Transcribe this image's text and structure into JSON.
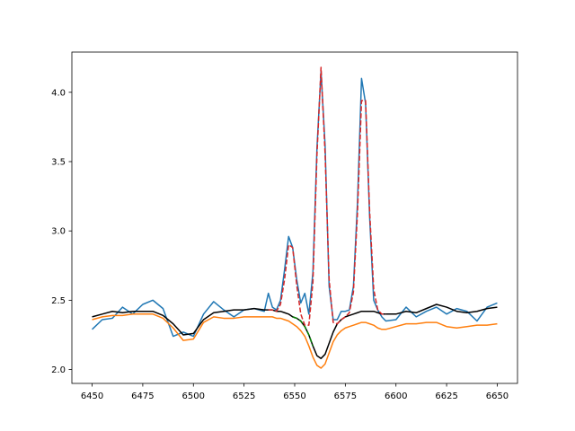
{
  "chart_data": {
    "type": "line",
    "x": [
      6450,
      6455,
      6460,
      6465,
      6470,
      6475,
      6480,
      6485,
      6490,
      6495,
      6500,
      6505,
      6510,
      6515,
      6520,
      6525,
      6530,
      6535,
      6537,
      6539,
      6541,
      6543,
      6545,
      6547,
      6549,
      6551,
      6553,
      6555,
      6557,
      6559,
      6561,
      6563,
      6565,
      6567,
      6569,
      6571,
      6573,
      6575,
      6577,
      6579,
      6581,
      6583,
      6585,
      6587,
      6589,
      6591,
      6593,
      6595,
      6600,
      6605,
      6610,
      6615,
      6620,
      6625,
      6630,
      6635,
      6640,
      6645,
      6650
    ],
    "series": [
      {
        "color": "#1f77b4",
        "dash": false,
        "values": [
          2.29,
          2.36,
          2.37,
          2.45,
          2.4,
          2.47,
          2.5,
          2.44,
          2.24,
          2.27,
          2.24,
          2.4,
          2.49,
          2.43,
          2.38,
          2.43,
          2.44,
          2.42,
          2.55,
          2.45,
          2.43,
          2.5,
          2.72,
          2.96,
          2.88,
          2.65,
          2.48,
          2.55,
          2.4,
          2.7,
          3.6,
          4.15,
          3.62,
          2.6,
          2.36,
          2.36,
          2.42,
          2.42,
          2.43,
          2.6,
          3.2,
          4.1,
          3.92,
          3.1,
          2.5,
          2.43,
          2.38,
          2.35,
          2.36,
          2.45,
          2.38,
          2.42,
          2.45,
          2.4,
          2.44,
          2.42,
          2.35,
          2.45,
          2.48
        ]
      },
      {
        "color": "#ff7f0e",
        "dash": false,
        "values": [
          2.36,
          2.38,
          2.39,
          2.39,
          2.4,
          2.4,
          2.4,
          2.37,
          2.3,
          2.21,
          2.22,
          2.34,
          2.38,
          2.37,
          2.37,
          2.38,
          2.38,
          2.38,
          2.38,
          2.38,
          2.37,
          2.37,
          2.36,
          2.35,
          2.33,
          2.31,
          2.28,
          2.24,
          2.17,
          2.09,
          2.03,
          2.01,
          2.04,
          2.12,
          2.2,
          2.25,
          2.28,
          2.3,
          2.31,
          2.32,
          2.33,
          2.34,
          2.34,
          2.33,
          2.32,
          2.3,
          2.29,
          2.29,
          2.31,
          2.33,
          2.33,
          2.34,
          2.34,
          2.31,
          2.3,
          2.31,
          2.32,
          2.32,
          2.33
        ]
      },
      {
        "color": "#000000",
        "dash": false,
        "values": [
          2.38,
          2.4,
          2.42,
          2.41,
          2.42,
          2.42,
          2.42,
          2.39,
          2.33,
          2.25,
          2.26,
          2.36,
          2.41,
          2.42,
          2.43,
          2.43,
          2.44,
          2.43,
          2.43,
          2.43,
          2.42,
          2.42,
          2.41,
          2.4,
          2.38,
          2.37,
          2.35,
          2.31,
          2.25,
          2.17,
          2.1,
          2.08,
          2.11,
          2.19,
          2.27,
          2.33,
          2.36,
          2.38,
          2.39,
          2.4,
          2.41,
          2.42,
          2.42,
          2.42,
          2.42,
          2.41,
          2.4,
          2.4,
          2.4,
          2.42,
          2.41,
          2.44,
          2.47,
          2.45,
          2.42,
          2.41,
          2.42,
          2.44,
          2.45
        ]
      },
      {
        "color": "#008000",
        "dash": true,
        "values": [
          null,
          null,
          null,
          null,
          null,
          null,
          null,
          null,
          null,
          null,
          null,
          null,
          null,
          null,
          null,
          null,
          null,
          null,
          null,
          null,
          null,
          null,
          null,
          null,
          2.38,
          2.37,
          2.35,
          2.31,
          2.25,
          2.17,
          null,
          null,
          null,
          null,
          null,
          null,
          null,
          null,
          null,
          null,
          null,
          null,
          null,
          null,
          null,
          null,
          null,
          null,
          null,
          null,
          null,
          null,
          null,
          null,
          null,
          null,
          null,
          null,
          null
        ]
      },
      {
        "color": "#d62728",
        "dash": true,
        "values": [
          null,
          null,
          null,
          null,
          null,
          null,
          null,
          null,
          null,
          null,
          null,
          null,
          null,
          null,
          null,
          null,
          null,
          null,
          2.43,
          2.43,
          2.42,
          2.47,
          2.65,
          2.9,
          2.88,
          2.61,
          2.4,
          2.32,
          2.32,
          2.63,
          3.55,
          4.18,
          3.56,
          2.65,
          2.34,
          2.33,
          2.36,
          2.38,
          2.41,
          2.56,
          3.13,
          3.94,
          3.94,
          3.14,
          2.58,
          2.43,
          2.4,
          2.4,
          null,
          null,
          null,
          null,
          null,
          null,
          null,
          null,
          null,
          null,
          null
        ]
      }
    ],
    "xlim": [
      6440,
      6660
    ],
    "ylim": [
      1.9,
      4.29
    ],
    "xticks": [
      6450,
      6475,
      6500,
      6525,
      6550,
      6575,
      6600,
      6625,
      6650
    ],
    "yticks": [
      {
        "value": 2,
        "label": "2.0"
      },
      2.5,
      {
        "value": 3,
        "label": "3.0"
      },
      3.5,
      {
        "value": 4,
        "label": "4.0"
      }
    ]
  }
}
